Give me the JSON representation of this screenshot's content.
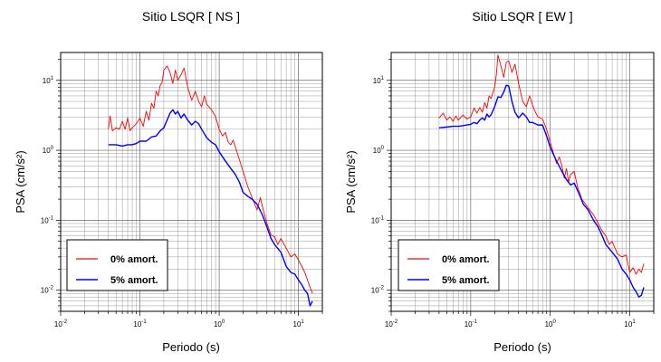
{
  "chart_data": [
    {
      "type": "line",
      "title": "Sitio LSQR [ NS ]",
      "xlabel": "Periodo (s)",
      "ylabel": "PSA (cm/s²)",
      "xscale": "log",
      "yscale": "log",
      "xlim": [
        0.01,
        20
      ],
      "ylim": [
        0.005,
        25
      ],
      "x_ticks": [
        "10-2",
        "10-1",
        "100",
        "101"
      ],
      "y_ticks": [
        "10-2",
        "10-1",
        "100",
        "101"
      ],
      "grid": true,
      "legend_position": "bottom-left",
      "series": [
        {
          "name": "0% amort.",
          "color": "#ff0000",
          "points": [
            [
              0.04,
              2.0
            ],
            [
              0.042,
              3.1
            ],
            [
              0.045,
              1.9
            ],
            [
              0.05,
              2.1
            ],
            [
              0.055,
              2.0
            ],
            [
              0.06,
              2.6
            ],
            [
              0.065,
              2.0
            ],
            [
              0.07,
              2.9
            ],
            [
              0.075,
              1.9
            ],
            [
              0.08,
              2.1
            ],
            [
              0.09,
              2.4
            ],
            [
              0.1,
              2.9
            ],
            [
              0.11,
              2.2
            ],
            [
              0.12,
              3.6
            ],
            [
              0.13,
              2.7
            ],
            [
              0.14,
              4.7
            ],
            [
              0.15,
              4.0
            ],
            [
              0.16,
              7.0
            ],
            [
              0.17,
              6.0
            ],
            [
              0.18,
              8.5
            ],
            [
              0.19,
              9.2
            ],
            [
              0.2,
              14.0
            ],
            [
              0.22,
              16.0
            ],
            [
              0.24,
              13.0
            ],
            [
              0.26,
              9.0
            ],
            [
              0.28,
              14.0
            ],
            [
              0.3,
              10.0
            ],
            [
              0.33,
              12.0
            ],
            [
              0.36,
              15.0
            ],
            [
              0.4,
              8.0
            ],
            [
              0.45,
              5.2
            ],
            [
              0.5,
              7.0
            ],
            [
              0.55,
              5.0
            ],
            [
              0.6,
              4.2
            ],
            [
              0.65,
              6.0
            ],
            [
              0.7,
              4.5
            ],
            [
              0.8,
              3.8
            ],
            [
              0.9,
              3.0
            ],
            [
              1.0,
              2.0
            ],
            [
              1.1,
              1.6
            ],
            [
              1.2,
              1.8
            ],
            [
              1.3,
              1.3
            ],
            [
              1.4,
              1.2
            ],
            [
              1.5,
              1.4
            ],
            [
              1.7,
              0.9
            ],
            [
              2.0,
              0.5
            ],
            [
              2.3,
              0.3
            ],
            [
              2.6,
              0.21
            ],
            [
              3.0,
              0.14
            ],
            [
              3.3,
              0.21
            ],
            [
              3.6,
              0.14
            ],
            [
              4.0,
              0.09
            ],
            [
              4.5,
              0.062
            ],
            [
              5.0,
              0.058
            ],
            [
              5.5,
              0.045
            ],
            [
              6.0,
              0.055
            ],
            [
              7.0,
              0.04
            ],
            [
              8.0,
              0.03
            ],
            [
              9.0,
              0.033
            ],
            [
              10.0,
              0.027
            ],
            [
              11.0,
              0.022
            ],
            [
              12.0,
              0.018
            ],
            [
              13.0,
              0.014
            ],
            [
              14.0,
              0.011
            ],
            [
              15.0,
              0.009
            ]
          ]
        },
        {
          "name": "5% amort.",
          "color": "#0000ff",
          "points": [
            [
              0.04,
              1.2
            ],
            [
              0.05,
              1.2
            ],
            [
              0.06,
              1.15
            ],
            [
              0.07,
              1.2
            ],
            [
              0.08,
              1.2
            ],
            [
              0.09,
              1.25
            ],
            [
              0.1,
              1.35
            ],
            [
              0.12,
              1.35
            ],
            [
              0.14,
              1.55
            ],
            [
              0.16,
              1.6
            ],
            [
              0.18,
              1.9
            ],
            [
              0.2,
              2.1
            ],
            [
              0.22,
              2.7
            ],
            [
              0.24,
              3.4
            ],
            [
              0.26,
              3.8
            ],
            [
              0.28,
              3.3
            ],
            [
              0.3,
              3.6
            ],
            [
              0.33,
              2.9
            ],
            [
              0.36,
              3.3
            ],
            [
              0.4,
              2.7
            ],
            [
              0.45,
              2.3
            ],
            [
              0.5,
              2.6
            ],
            [
              0.55,
              2.4
            ],
            [
              0.6,
              2.0
            ],
            [
              0.7,
              1.5
            ],
            [
              0.8,
              1.3
            ],
            [
              0.9,
              1.2
            ],
            [
              1.0,
              0.95
            ],
            [
              1.2,
              0.7
            ],
            [
              1.4,
              0.55
            ],
            [
              1.6,
              0.45
            ],
            [
              1.8,
              0.35
            ],
            [
              2.0,
              0.25
            ],
            [
              2.3,
              0.22
            ],
            [
              2.6,
              0.2
            ],
            [
              3.0,
              0.17
            ],
            [
              3.5,
              0.12
            ],
            [
              4.0,
              0.08
            ],
            [
              4.5,
              0.055
            ],
            [
              5.0,
              0.045
            ],
            [
              6.0,
              0.035
            ],
            [
              7.0,
              0.022
            ],
            [
              8.0,
              0.018
            ],
            [
              9.0,
              0.017
            ],
            [
              10.0,
              0.014
            ],
            [
              11.0,
              0.012
            ],
            [
              12.0,
              0.01
            ],
            [
              13.0,
              0.009
            ],
            [
              14.0,
              0.006
            ],
            [
              15.0,
              0.007
            ]
          ]
        }
      ]
    },
    {
      "type": "line",
      "title": "Sitio LSQR [ EW ]",
      "xlabel": "Periodo (s)",
      "ylabel": "PSA (cm/s²)",
      "xscale": "log",
      "yscale": "log",
      "xlim": [
        0.01,
        20
      ],
      "ylim": [
        0.005,
        25
      ],
      "x_ticks": [
        "10-2",
        "10-1",
        "100",
        "101"
      ],
      "y_ticks": [
        "10-2",
        "10-1",
        "100",
        "101"
      ],
      "grid": true,
      "legend_position": "bottom-left",
      "series": [
        {
          "name": "0% amort.",
          "color": "#ff0000",
          "points": [
            [
              0.04,
              2.9
            ],
            [
              0.045,
              3.4
            ],
            [
              0.05,
              2.7
            ],
            [
              0.055,
              3.0
            ],
            [
              0.06,
              2.6
            ],
            [
              0.065,
              3.1
            ],
            [
              0.07,
              2.7
            ],
            [
              0.08,
              3.2
            ],
            [
              0.09,
              2.8
            ],
            [
              0.1,
              3.0
            ],
            [
              0.11,
              4.0
            ],
            [
              0.12,
              3.4
            ],
            [
              0.13,
              4.1
            ],
            [
              0.14,
              3.5
            ],
            [
              0.15,
              4.8
            ],
            [
              0.16,
              4.0
            ],
            [
              0.17,
              6.0
            ],
            [
              0.18,
              5.5
            ],
            [
              0.2,
              8.0
            ],
            [
              0.21,
              12.0
            ],
            [
              0.22,
              23.0
            ],
            [
              0.24,
              16.0
            ],
            [
              0.26,
              11.0
            ],
            [
              0.28,
              18.0
            ],
            [
              0.3,
              19.0
            ],
            [
              0.33,
              13.0
            ],
            [
              0.36,
              17.0
            ],
            [
              0.4,
              9.0
            ],
            [
              0.45,
              5.0
            ],
            [
              0.5,
              4.2
            ],
            [
              0.55,
              6.0
            ],
            [
              0.6,
              4.4
            ],
            [
              0.65,
              3.5
            ],
            [
              0.7,
              3.0
            ],
            [
              0.8,
              2.8
            ],
            [
              0.9,
              2.0
            ],
            [
              1.0,
              1.3
            ],
            [
              1.1,
              0.9
            ],
            [
              1.2,
              0.65
            ],
            [
              1.3,
              0.8
            ],
            [
              1.4,
              0.6
            ],
            [
              1.5,
              0.4
            ],
            [
              1.6,
              0.55
            ],
            [
              1.7,
              0.35
            ],
            [
              1.8,
              0.45
            ],
            [
              2.0,
              0.5
            ],
            [
              2.2,
              0.3
            ],
            [
              2.5,
              0.2
            ],
            [
              3.0,
              0.15
            ],
            [
              3.5,
              0.12
            ],
            [
              4.0,
              0.09
            ],
            [
              4.5,
              0.07
            ],
            [
              5.0,
              0.06
            ],
            [
              5.5,
              0.045
            ],
            [
              6.0,
              0.05
            ],
            [
              7.0,
              0.033
            ],
            [
              8.0,
              0.03
            ],
            [
              9.0,
              0.032
            ],
            [
              10.0,
              0.018
            ],
            [
              11.0,
              0.021
            ],
            [
              12.0,
              0.017
            ],
            [
              13.0,
              0.02
            ],
            [
              14.0,
              0.018
            ],
            [
              15.0,
              0.024
            ]
          ]
        },
        {
          "name": "5% amort.",
          "color": "#0000ff",
          "points": [
            [
              0.04,
              2.1
            ],
            [
              0.05,
              2.15
            ],
            [
              0.06,
              2.2
            ],
            [
              0.07,
              2.2
            ],
            [
              0.08,
              2.25
            ],
            [
              0.09,
              2.3
            ],
            [
              0.1,
              2.35
            ],
            [
              0.11,
              2.5
            ],
            [
              0.12,
              2.4
            ],
            [
              0.13,
              2.7
            ],
            [
              0.14,
              2.9
            ],
            [
              0.15,
              2.7
            ],
            [
              0.16,
              3.3
            ],
            [
              0.17,
              3.0
            ],
            [
              0.18,
              3.2
            ],
            [
              0.2,
              4.2
            ],
            [
              0.22,
              5.8
            ],
            [
              0.24,
              5.7
            ],
            [
              0.26,
              6.8
            ],
            [
              0.28,
              8.5
            ],
            [
              0.3,
              8.3
            ],
            [
              0.33,
              5.0
            ],
            [
              0.36,
              3.5
            ],
            [
              0.4,
              2.9
            ],
            [
              0.45,
              3.4
            ],
            [
              0.5,
              3.0
            ],
            [
              0.55,
              2.5
            ],
            [
              0.6,
              2.5
            ],
            [
              0.7,
              2.3
            ],
            [
              0.8,
              2.3
            ],
            [
              0.9,
              1.6
            ],
            [
              1.0,
              1.1
            ],
            [
              1.2,
              0.7
            ],
            [
              1.4,
              0.5
            ],
            [
              1.6,
              0.38
            ],
            [
              1.8,
              0.32
            ],
            [
              2.0,
              0.34
            ],
            [
              2.3,
              0.24
            ],
            [
              2.6,
              0.17
            ],
            [
              3.0,
              0.14
            ],
            [
              3.5,
              0.1
            ],
            [
              4.0,
              0.08
            ],
            [
              4.5,
              0.06
            ],
            [
              5.0,
              0.045
            ],
            [
              6.0,
              0.035
            ],
            [
              7.0,
              0.028
            ],
            [
              8.0,
              0.02
            ],
            [
              9.0,
              0.017
            ],
            [
              10.0,
              0.014
            ],
            [
              11.0,
              0.011
            ],
            [
              12.0,
              0.0095
            ],
            [
              13.0,
              0.008
            ],
            [
              14.0,
              0.0085
            ],
            [
              15.0,
              0.011
            ]
          ]
        }
      ]
    }
  ]
}
